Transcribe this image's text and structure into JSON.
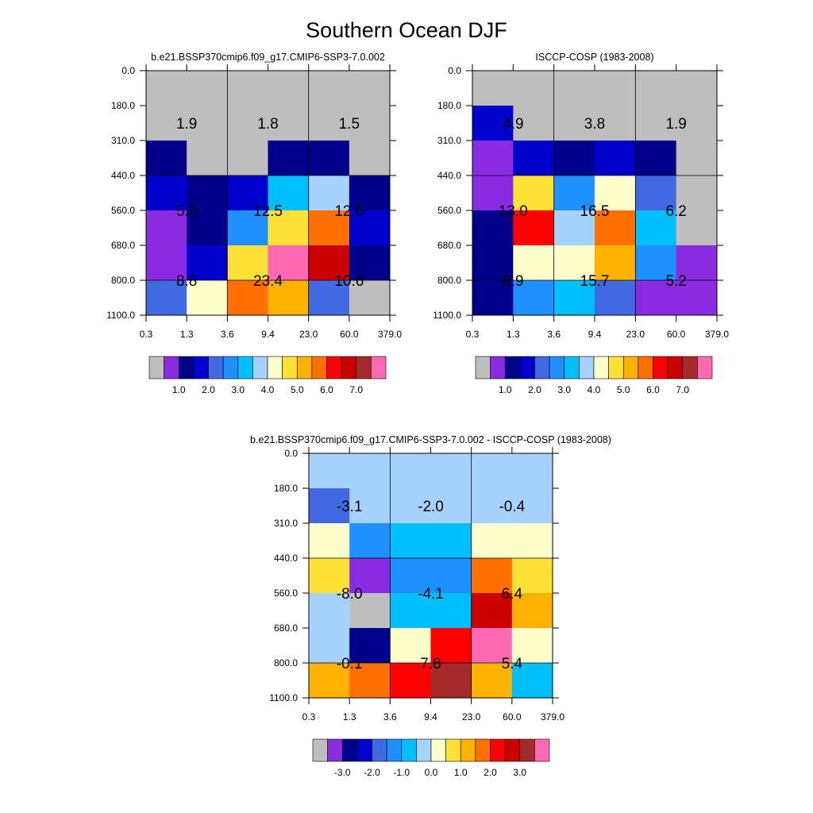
{
  "title": "Southern Ocean DJF",
  "palette": [
    "#BEBEBE",
    "#8A2BE2",
    "#00008B",
    "#0000CD",
    "#4169E1",
    "#1E90FF",
    "#00BFFF",
    "#A6D2FF",
    "#FFFFCC",
    "#FFE135",
    "#FFB300",
    "#FF7000",
    "#FF0000",
    "#CC0000",
    "#A52A2A",
    "#FF69B4"
  ],
  "chart_data": [
    {
      "type": "heatmap",
      "title": "b.e21.BSSP370cmip6.f09_g17.CMIP6-SSP3-7.0.002",
      "x_tick_labels": [
        "0.3",
        "1.3",
        "3.6",
        "9.4",
        "23.0",
        "60.0",
        "379.0"
      ],
      "y_tick_labels": [
        "0.0",
        "180.0",
        "310.0",
        "440.0",
        "560.0",
        "680.0",
        "800.0",
        "1100.0"
      ],
      "cell_colors": [
        [
          0,
          0,
          0,
          0,
          0,
          0
        ],
        [
          0,
          0,
          0,
          0,
          0,
          0
        ],
        [
          2,
          0,
          0,
          2,
          2,
          0
        ],
        [
          3,
          2,
          3,
          6,
          7,
          2
        ],
        [
          1,
          2,
          5,
          9,
          11,
          3
        ],
        [
          1,
          3,
          9,
          15,
          13,
          2
        ],
        [
          4,
          8,
          11,
          10,
          4,
          0
        ]
      ],
      "box_labels": [
        [
          "1.9",
          "1.8",
          "1.5"
        ],
        [
          "5.0",
          "12.5",
          "12.6"
        ],
        [
          "8.8",
          "23.4",
          "10.6"
        ]
      ],
      "colorbar": {
        "tick_labels": [
          "1.0",
          "2.0",
          "3.0",
          "4.0",
          "5.0",
          "6.0",
          "7.0"
        ]
      }
    },
    {
      "type": "heatmap",
      "title": "ISCCP-COSP (1983-2008)",
      "x_tick_labels": [
        "0.3",
        "1.3",
        "3.6",
        "9.4",
        "23.0",
        "60.0",
        "379.0"
      ],
      "y_tick_labels": [
        "0.0",
        "180.0",
        "310.0",
        "440.0",
        "560.0",
        "680.0",
        "800.0",
        "1100.0"
      ],
      "cell_colors": [
        [
          0,
          0,
          0,
          0,
          0,
          0
        ],
        [
          3,
          0,
          0,
          0,
          0,
          0
        ],
        [
          1,
          3,
          2,
          3,
          2,
          0
        ],
        [
          1,
          9,
          5,
          8,
          4,
          0
        ],
        [
          2,
          12,
          7,
          11,
          6,
          0
        ],
        [
          2,
          8,
          8,
          10,
          5,
          1
        ],
        [
          2,
          5,
          6,
          4,
          1,
          1
        ]
      ],
      "box_labels": [
        [
          "4.9",
          "3.8",
          "1.9"
        ],
        [
          "13.0",
          "16.5",
          "6.2"
        ],
        [
          "8.9",
          "15.7",
          "5.2"
        ]
      ],
      "colorbar": {
        "tick_labels": [
          "1.0",
          "2.0",
          "3.0",
          "4.0",
          "5.0",
          "6.0",
          "7.0"
        ]
      }
    },
    {
      "type": "heatmap",
      "title": "b.e21.BSSP370cmip6.f09_g17.CMIP6-SSP3-7.0.002 - ISCCP-COSP (1983-2008)",
      "x_tick_labels": [
        "0.3",
        "1.3",
        "3.6",
        "9.4",
        "23.0",
        "60.0",
        "379.0"
      ],
      "y_tick_labels": [
        "0.0",
        "180.0",
        "310.0",
        "440.0",
        "560.0",
        "680.0",
        "800.0",
        "1100.0"
      ],
      "cell_colors": [
        [
          7,
          7,
          7,
          7,
          7,
          7
        ],
        [
          4,
          7,
          7,
          7,
          7,
          7
        ],
        [
          8,
          5,
          6,
          6,
          8,
          8
        ],
        [
          9,
          1,
          5,
          5,
          11,
          9
        ],
        [
          7,
          0,
          6,
          6,
          13,
          10
        ],
        [
          7,
          2,
          8,
          12,
          15,
          8
        ],
        [
          10,
          11,
          12,
          14,
          10,
          6
        ]
      ],
      "box_labels": [
        [
          "-3.1",
          "-2.0",
          "-0.4"
        ],
        [
          "-8.0",
          "-4.1",
          "6.4"
        ],
        [
          "-0.1",
          "7.8",
          "5.4"
        ]
      ],
      "colorbar": {
        "tick_labels": [
          "-3.0",
          "-2.0",
          "-1.0",
          "0.0",
          "1.0",
          "2.0",
          "3.0"
        ]
      }
    }
  ]
}
